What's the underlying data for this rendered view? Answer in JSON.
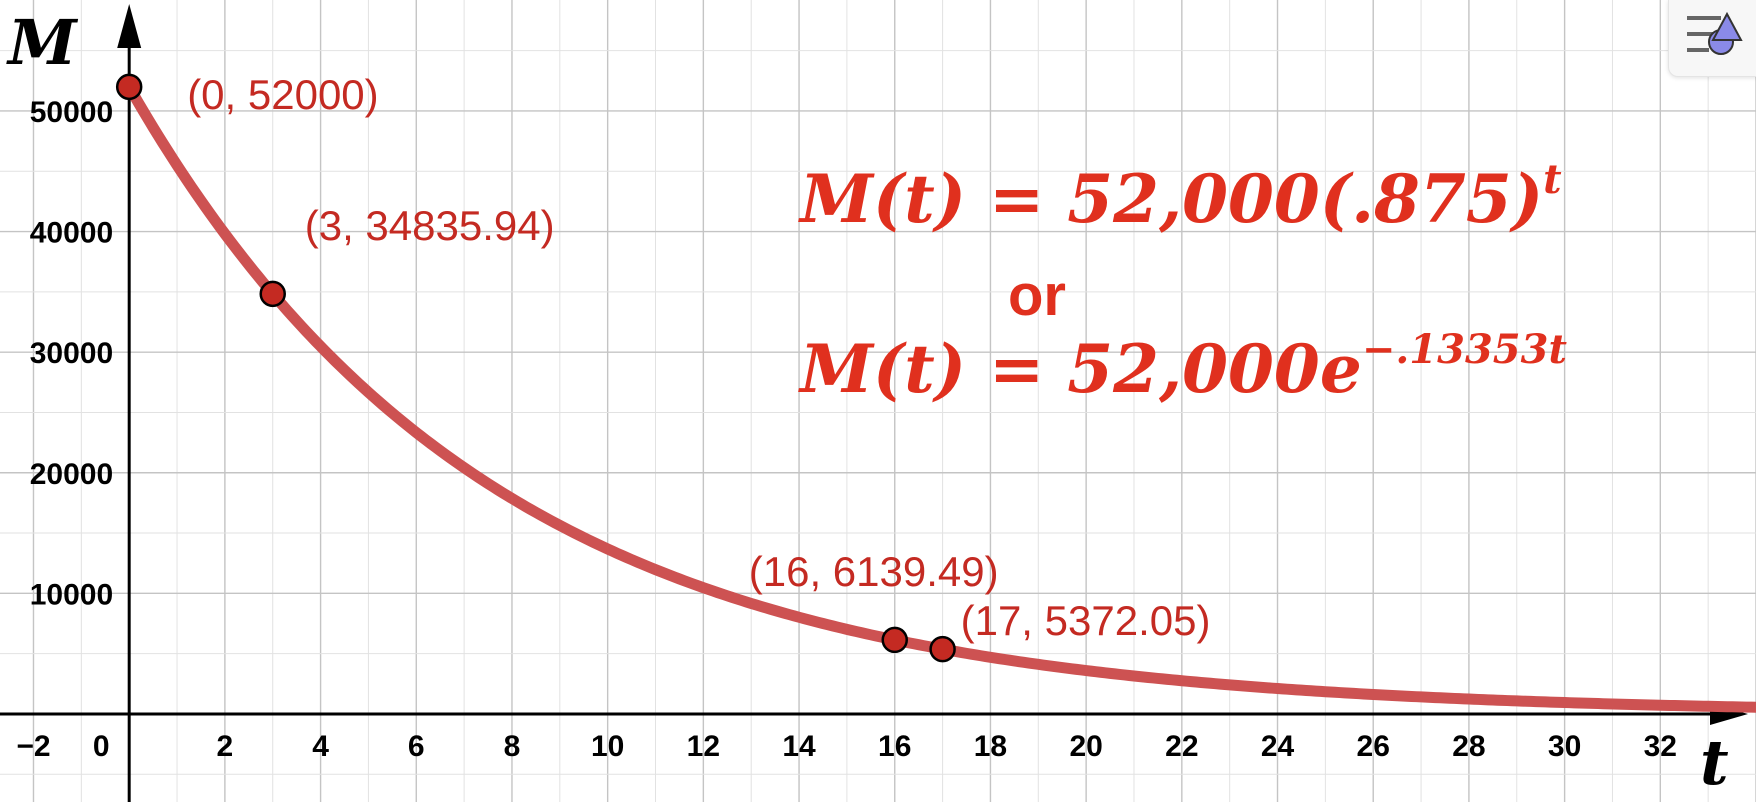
{
  "chart_data": {
    "type": "line",
    "function": {
      "formula": "M(t) = 52000 * 0.875^t",
      "base": 52000,
      "growth_factor": 0.875
    },
    "xlabel": "t",
    "ylabel": "M",
    "xlim": [
      -2.7,
      34
    ],
    "ylim": [
      -7300,
      59200
    ],
    "x_ticks": [
      -2,
      0,
      2,
      4,
      6,
      8,
      10,
      12,
      14,
      16,
      18,
      20,
      22,
      24,
      26,
      28,
      30,
      32
    ],
    "x_tick_labels": [
      "−2",
      "0",
      "2",
      "4",
      "6",
      "8",
      "10",
      "12",
      "14",
      "16",
      "18",
      "20",
      "22",
      "24",
      "26",
      "28",
      "30",
      "32"
    ],
    "y_ticks": [
      10000,
      20000,
      30000,
      40000,
      50000
    ],
    "y_tick_labels": [
      "10000",
      "20000",
      "30000",
      "40000",
      "50000"
    ],
    "grid": true,
    "curve_color": "#cd5252",
    "point_color": "#c42a22",
    "label_color": "#c42a22",
    "points": [
      {
        "x": 0,
        "y": 52000,
        "label": "(0, 52000)"
      },
      {
        "x": 3,
        "y": 34835.94,
        "label": "(3, 34835.94)"
      },
      {
        "x": 16,
        "y": 6139.49,
        "label": "(16, 6139.49)"
      },
      {
        "x": 17,
        "y": 5372.05,
        "label": "(17, 5372.05)"
      }
    ]
  },
  "formulas": {
    "first": {
      "lhs": "M(t) = 52,000(.875)",
      "exponent": "t"
    },
    "connector": "or",
    "second": {
      "lhs": "M(t) = 52,000e",
      "exponent": "−.13353t"
    },
    "color": "#e0301e"
  },
  "toolbar": {
    "style_bar_icon": "style-bar-icon"
  }
}
